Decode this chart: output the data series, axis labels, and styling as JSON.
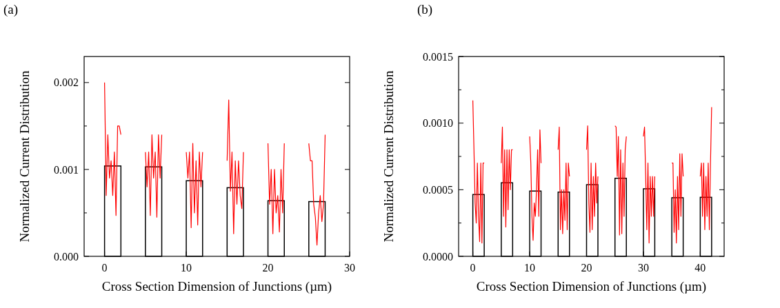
{
  "chart_data": [
    {
      "type": "line",
      "title": "(a)",
      "xlabel": "Cross Section Dimension of Junctions (µm)",
      "ylabel": "Normalized Current Distribution",
      "xlim": [
        -2.5,
        30
      ],
      "xticks": [
        0,
        10,
        20,
        30
      ],
      "ylim": [
        0,
        0.0023
      ],
      "yticks": [
        {
          "value": 0,
          "label": "0.000"
        },
        {
          "value": 0.0005,
          "label": null
        },
        {
          "value": 0.001,
          "label": "0.001"
        },
        {
          "value": 0.0015,
          "label": null
        },
        {
          "value": 0.002,
          "label": "0.002"
        }
      ],
      "series": [
        {
          "type": "bar",
          "color": "#000000",
          "x": [
            1,
            6,
            11,
            16,
            21,
            26
          ],
          "values": [
            0.00104,
            0.00103,
            0.00087,
            0.00079,
            0.00064,
            0.00063
          ]
        },
        {
          "color": "#ff0000",
          "x": [
            0,
            0.2,
            0.4,
            0.6,
            0.8,
            1,
            1.2,
            1.4,
            1.6,
            1.8,
            2,
            3.5,
            5,
            5.2,
            5.4,
            5.6,
            5.8,
            6,
            6.2,
            6.4,
            6.6,
            6.8,
            7,
            8.5,
            10,
            10.2,
            10.4,
            10.6,
            10.8,
            11,
            11.2,
            11.4,
            11.6,
            11.8,
            12,
            13.5,
            15,
            15.2,
            15.4,
            15.6,
            15.8,
            16,
            16.2,
            16.4,
            16.6,
            16.8,
            17,
            18.5,
            20,
            20.2,
            20.4,
            20.6,
            20.8,
            21,
            21.2,
            21.4,
            21.6,
            21.8,
            22,
            23.5,
            25,
            25.2,
            25.4,
            25.6,
            25.8,
            26,
            26.2,
            26.4,
            26.6,
            26.8,
            27
          ],
          "values": [
            0.002,
            0.0007,
            0.0014,
            0.0009,
            0.0011,
            0.0007,
            0.0012,
            0.00047,
            0.0015,
            0.0015,
            0.0014,
            null,
            0.0012,
            0.0008,
            0.0012,
            0.00047,
            0.0014,
            0.0009,
            0.0012,
            0.00045,
            0.0014,
            0.0009,
            0.0014,
            null,
            0.0012,
            0.0009,
            0.0012,
            0.00033,
            0.0013,
            0.0005,
            0.0011,
            0.00036,
            0.0012,
            0.0008,
            0.0012,
            null,
            0.0011,
            0.0018,
            0.00075,
            0.0012,
            0.00026,
            0.0011,
            0.0006,
            0.0011,
            0.0007,
            0.00055,
            0.0012,
            null,
            0.0013,
            0.0006,
            0.001,
            0.00026,
            0.001,
            0.0005,
            0.0007,
            0.00028,
            0.001,
            0.0005,
            0.0013,
            null,
            0.0013,
            0.0011,
            0.0011,
            0.0006,
            0.00045,
            0.00013,
            0.0005,
            0.0007,
            0.0004,
            0.0006,
            0.0014
          ]
        }
      ]
    },
    {
      "type": "line",
      "title": "(b)",
      "xlabel": "Cross Section Dimension of Junctions (µm)",
      "ylabel": "Normalized Current Distribution",
      "xlim": [
        -2.5,
        44.2
      ],
      "xticks": [
        0,
        10,
        20,
        30,
        40
      ],
      "ylim": [
        0,
        0.0015
      ],
      "yticks": [
        {
          "value": 0,
          "label": "0.0000"
        },
        {
          "value": 0.00025,
          "label": null
        },
        {
          "value": 0.0005,
          "label": "0.0005"
        },
        {
          "value": 0.00075,
          "label": null
        },
        {
          "value": 0.001,
          "label": "0.0010"
        },
        {
          "value": 0.00125,
          "label": null
        },
        {
          "value": 0.0015,
          "label": "0.0015"
        }
      ],
      "series": [
        {
          "type": "bar",
          "color": "#000000",
          "x": [
            1,
            6,
            11,
            16,
            21,
            26,
            31,
            36,
            41
          ],
          "values": [
            0.000464,
            0.000552,
            0.00049,
            0.000482,
            0.000538,
            0.000586,
            0.000507,
            0.00044,
            0.000443
          ]
        },
        {
          "color": "#ff0000",
          "x": [
            0,
            0.2,
            0.4,
            0.6,
            0.8,
            1,
            1.2,
            1.4,
            1.6,
            1.8,
            2,
            3.5,
            5,
            5.2,
            5.4,
            5.6,
            5.8,
            6,
            6.2,
            6.4,
            6.6,
            6.8,
            7,
            8.5,
            10,
            10.2,
            10.4,
            10.6,
            10.8,
            11,
            11.2,
            11.4,
            11.6,
            11.8,
            12,
            13.5,
            15,
            15.2,
            15.4,
            15.6,
            15.8,
            16,
            16.2,
            16.4,
            16.6,
            16.8,
            17,
            18.5,
            20,
            20.2,
            20.4,
            20.6,
            20.8,
            21,
            21.2,
            21.4,
            21.6,
            21.8,
            22,
            23.5,
            25,
            25.2,
            25.4,
            25.6,
            25.8,
            26,
            26.2,
            26.4,
            26.6,
            26.8,
            27,
            28.5,
            30,
            30.2,
            30.4,
            30.6,
            30.8,
            31,
            31.2,
            31.4,
            31.6,
            31.8,
            32,
            33.5,
            35,
            35.2,
            35.4,
            35.6,
            35.8,
            36,
            36.2,
            36.4,
            36.6,
            36.8,
            37,
            38.5,
            40,
            40.2,
            40.4,
            40.6,
            40.8,
            41,
            41.2,
            41.4,
            41.6,
            41.8,
            42
          ],
          "values": [
            0.00117,
            0.0008,
            0.0004,
            0.00025,
            0.0007,
            0.0003,
            0.00011,
            0.0007,
            0.0001,
            0.0007,
            0.0007,
            null,
            0.0007,
            0.00097,
            0.0003,
            0.0008,
            0.00022,
            0.0008,
            0.00035,
            0.0008,
            0.0005,
            0.0008,
            0.0008,
            null,
            0.0009,
            0.0007,
            0.0003,
            0.00012,
            0.0004,
            0.0003,
            0.0005,
            0.0008,
            0.0003,
            0.00095,
            0.0007,
            null,
            0.0008,
            0.00097,
            0.0002,
            0.0005,
            0.00017,
            0.0005,
            0.00027,
            0.0007,
            0.0002,
            0.0007,
            0.0006,
            null,
            0.0008,
            0.00098,
            0.0004,
            0.00018,
            0.0007,
            0.0002,
            0.0006,
            0.0003,
            0.0007,
            0.0004,
            0.0006,
            null,
            0.00098,
            0.00097,
            0.0006,
            0.0009,
            0.00016,
            0.0008,
            0.00017,
            0.0007,
            0.0003,
            0.0008,
            0.0009,
            null,
            0.0009,
            0.00097,
            0.0006,
            0.0002,
            0.0007,
            0.0001,
            0.0006,
            0.0003,
            0.0006,
            0.0003,
            0.0006,
            null,
            0.0007,
            0.0007,
            0.00018,
            0.0005,
            0.0001,
            0.0006,
            0.0002,
            0.00077,
            0.0003,
            0.00077,
            0.0006,
            null,
            0.0006,
            0.0007,
            0.0003,
            0.0007,
            0.0002,
            0.0006,
            0.0003,
            0.0007,
            0.0002,
            0.0007,
            0.00112
          ]
        }
      ]
    }
  ]
}
